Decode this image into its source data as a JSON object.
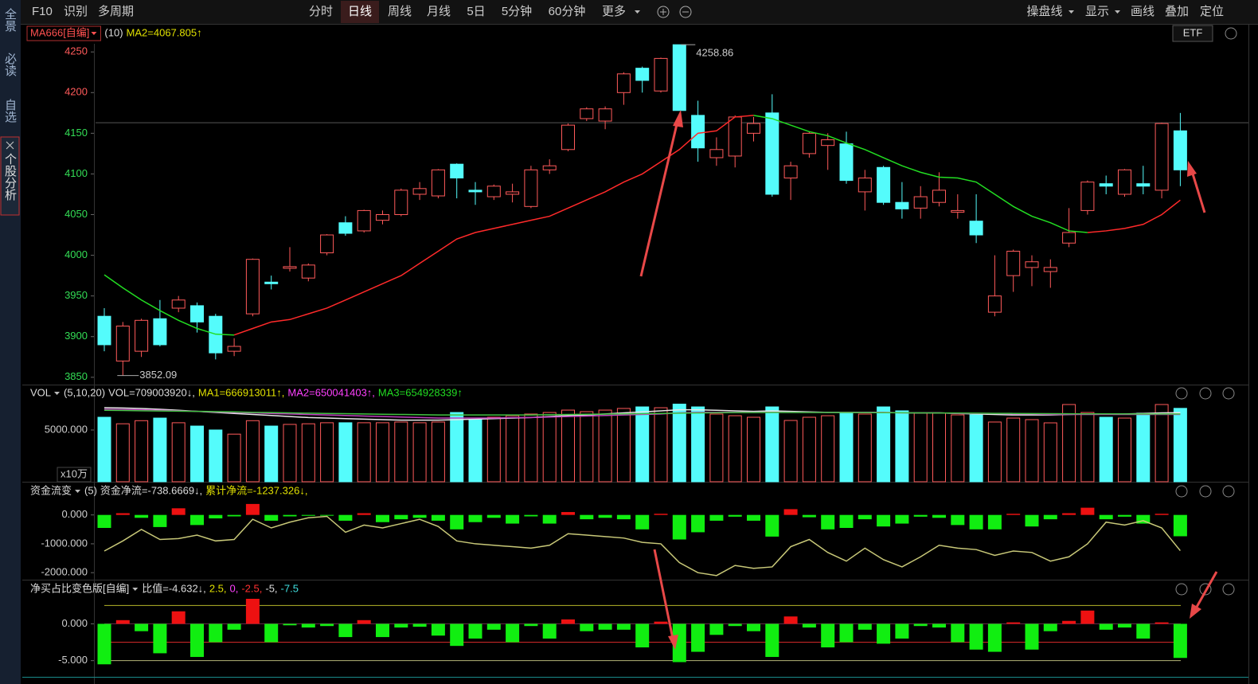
{
  "toolbar": {
    "left": [
      "F10",
      "识别",
      "多周期"
    ],
    "periods": [
      "分时",
      "日线",
      "周线",
      "月线",
      "5日",
      "5分钟",
      "60分钟",
      "更多"
    ],
    "right": [
      "操盘线",
      "显示",
      "画线",
      "叠加",
      "定位"
    ]
  },
  "sidebar": [
    "全景",
    "必读",
    "自选",
    "个股分析"
  ],
  "chart_data": [
    {
      "type": "candlestick",
      "indicator": "MA666[自编]",
      "param": "(10)",
      "legend": "MA2=4067.805↑",
      "button": "ETF",
      "open": [
        3925,
        3870,
        3882,
        3922,
        3935,
        3938,
        3925,
        3882,
        3928,
        3967,
        3984,
        3972,
        4003,
        4040,
        4030,
        4043,
        4050,
        4075,
        4073,
        4112,
        4080,
        4072,
        4075,
        4060,
        4105,
        4130,
        4168,
        4165,
        4200,
        4230,
        4202,
        4258.86,
        4172,
        4120,
        4122,
        4150,
        4175,
        4095,
        4125,
        4135,
        4137,
        4078,
        4108,
        4065,
        4058,
        4065,
        4053,
        4042,
        3930,
        3975,
        3985,
        3980,
        4015,
        4055,
        4088,
        4075,
        4088,
        4080,
        4153
      ],
      "high": [
        3935,
        3918,
        3922,
        3945,
        3950,
        3942,
        3928,
        3898,
        3996,
        3975,
        4010,
        3990,
        4026,
        4048,
        4056,
        4055,
        4082,
        4090,
        4106,
        4113,
        4090,
        4087,
        4088,
        4110,
        4118,
        4162,
        4182,
        4183,
        4225,
        4232,
        4243,
        4258.86,
        4190,
        4145,
        4172,
        4170,
        4198,
        4115,
        4152,
        4150,
        4152,
        4105,
        4110,
        4090,
        4085,
        4102,
        4075,
        4075,
        4000,
        4007,
        4000,
        3995,
        4058,
        4092,
        4098,
        4106,
        4110,
        4163,
        4175
      ],
      "low": [
        3882,
        3852.09,
        3875,
        3888,
        3930,
        3905,
        3872,
        3876,
        3925,
        3958,
        3980,
        3968,
        4000,
        4024,
        4028,
        4038,
        4048,
        4068,
        4070,
        4070,
        4062,
        4068,
        4065,
        4058,
        4100,
        4128,
        4165,
        4155,
        4185,
        4200,
        4200,
        4178,
        4115,
        4110,
        4108,
        4140,
        4072,
        4068,
        4120,
        4105,
        4088,
        4055,
        4062,
        4045,
        4045,
        4060,
        4045,
        4015,
        3925,
        3955,
        3962,
        3960,
        4010,
        4050,
        4075,
        4072,
        4075,
        4070,
        4085
      ],
      "close": [
        3890,
        3913,
        3920,
        3890,
        3945,
        3918,
        3880,
        3888,
        3995,
        3965,
        3986,
        3988,
        4025,
        4027,
        4055,
        4050,
        4080,
        4082,
        4105,
        4095,
        4078,
        4085,
        4078,
        4105,
        4110,
        4160,
        4180,
        4180,
        4223,
        4215,
        4242,
        4178,
        4132,
        4130,
        4170,
        4162,
        4075,
        4110,
        4150,
        4142,
        4092,
        4095,
        4065,
        4057,
        4072,
        4080,
        4055,
        4025,
        3950,
        4005,
        3992,
        3985,
        4028,
        4090,
        4085,
        4105,
        4085,
        4162,
        4105
      ],
      "ma": [
        3976,
        3960,
        3945,
        3932,
        3920,
        3910,
        3903,
        3902,
        3910,
        3918,
        3921,
        3928,
        3935,
        3945,
        3955,
        3965,
        3975,
        3990,
        4005,
        4020,
        4028,
        4033,
        4038,
        4043,
        4048,
        4058,
        4068,
        4078,
        4090,
        4100,
        4115,
        4130,
        4150,
        4153,
        4170,
        4172,
        4168,
        4160,
        4152,
        4147,
        4138,
        4130,
        4120,
        4110,
        4102,
        4096,
        4095,
        4090,
        4075,
        4060,
        4048,
        4040,
        4030,
        4028,
        4030,
        4033,
        4038,
        4050,
        4067.805
      ],
      "prev_close": 4163,
      "ylim": [
        3841,
        4260
      ],
      "yticks": [
        3850,
        3900,
        3950,
        4000,
        4050,
        4100,
        4150,
        4200,
        4250
      ],
      "up_color": "#ff5a5a",
      "down_color": "#54fcfc",
      "ma_up_color": "#ff2a2a",
      "ma_down_color": "#22dd22",
      "tick_up_color": "#ff5a5a",
      "tick_down_color": "#33dd55"
    },
    {
      "type": "volume",
      "title": "VOL",
      "param": "(5,10,20)",
      "legend": [
        "VOL=709003920↓,",
        "MA1=666913011↑,",
        "MA2=650041403↑,",
        "MA3=654928339↑"
      ],
      "legend_colors": [
        "#dddddd",
        "#e0e000",
        "#ff40ff",
        "#22dd22"
      ],
      "values": [
        6230,
        5600,
        5900,
        6150,
        5700,
        5380,
        5000,
        4600,
        5900,
        5380,
        5540,
        5600,
        5700,
        5700,
        5700,
        5700,
        5770,
        5700,
        5770,
        6690,
        6000,
        6230,
        6380,
        6540,
        6690,
        6920,
        6770,
        6920,
        7080,
        7230,
        7150,
        7500,
        7230,
        6540,
        6380,
        6230,
        7230,
        5920,
        6230,
        6380,
        6690,
        6540,
        7230,
        6850,
        6620,
        6620,
        6460,
        6460,
        5770,
        6150,
        6000,
        5690,
        7460,
        6690,
        6230,
        6150,
        6620,
        7460,
        7090.0392
      ],
      "lines": [
        {
          "color": "#e8e8e8",
          "values": [
            7150,
            7120,
            7080,
            7000,
            6900,
            6800,
            6700,
            6600,
            6500,
            6400,
            6300,
            6200,
            6150,
            6100,
            6050,
            6000,
            5950,
            5950,
            5950,
            6000,
            6050,
            6100,
            6150,
            6200,
            6300,
            6400,
            6450,
            6550,
            6650,
            6750,
            6850,
            6950,
            6950,
            6900,
            6850,
            6800,
            6850,
            6800,
            6750,
            6700,
            6700,
            6700,
            6700,
            6650,
            6650,
            6650,
            6600,
            6550,
            6500,
            6450,
            6450,
            6450,
            6500,
            6550,
            6550,
            6550,
            6600,
            6650,
            6669.13011
          ]
        },
        {
          "color": "#c040c0",
          "values": [
            7000,
            6980,
            6950,
            6900,
            6850,
            6800,
            6750,
            6700,
            6650,
            6600,
            6550,
            6500,
            6450,
            6400,
            6350,
            6300,
            6250,
            6200,
            6150,
            6150,
            6150,
            6150,
            6200,
            6200,
            6250,
            6300,
            6350,
            6400,
            6450,
            6500,
            6550,
            6650,
            6700,
            6700,
            6700,
            6700,
            6700,
            6700,
            6700,
            6700,
            6700,
            6700,
            6700,
            6650,
            6650,
            6650,
            6600,
            6600,
            6600,
            6550,
            6550,
            6500,
            6500,
            6500,
            6500,
            6500,
            6500,
            6500,
            6500.41403
          ]
        },
        {
          "color": "#40c040",
          "values": [
            6900,
            6880,
            6860,
            6840,
            6820,
            6800,
            6780,
            6750,
            6700,
            6680,
            6650,
            6620,
            6600,
            6580,
            6550,
            6520,
            6500,
            6480,
            6450,
            6450,
            6450,
            6450,
            6450,
            6450,
            6480,
            6500,
            6520,
            6540,
            6560,
            6580,
            6600,
            6620,
            6640,
            6660,
            6680,
            6680,
            6690,
            6690,
            6690,
            6690,
            6690,
            6680,
            6670,
            6660,
            6650,
            6640,
            6630,
            6620,
            6610,
            6600,
            6590,
            6580,
            6570,
            6560,
            6560,
            6550,
            6550,
            6550,
            6549.28339
          ]
        }
      ],
      "unit": "x10万",
      "ylim": [
        0,
        7538
      ],
      "yticks": [
        {
          "value": 5000,
          "label": "5000.000"
        }
      ],
      "up_color": "#ff5a5a",
      "down_color": "#54fcfc"
    },
    {
      "type": "bar",
      "title": "资金流变",
      "param": "(5)",
      "legend": [
        "资金净流=-738.6669↓,",
        "累计净流=-1237.326↓,"
      ],
      "legend_colors": [
        "#dddddd",
        "#e0e000"
      ],
      "values": [
        -450,
        60,
        -100,
        -420,
        230,
        -350,
        -120,
        -50,
        380,
        -200,
        -50,
        -30,
        -20,
        -200,
        60,
        -250,
        -150,
        -100,
        -200,
        -500,
        -250,
        -100,
        -300,
        -50,
        -300,
        100,
        -150,
        -100,
        -150,
        -500,
        40,
        -850,
        -600,
        -200,
        -60,
        -200,
        -750,
        200,
        -80,
        -500,
        -450,
        -150,
        -400,
        -300,
        -60,
        -100,
        -350,
        -500,
        -500,
        40,
        -400,
        -150,
        60,
        250,
        -150,
        -60,
        -300,
        40,
        -738.6669
      ],
      "line": [
        -1250,
        -900,
        -500,
        -850,
        -820,
        -700,
        -900,
        -850,
        -150,
        -450,
        -250,
        -100,
        -50,
        -600,
        -350,
        -450,
        -300,
        -150,
        -400,
        -900,
        -1000,
        -1050,
        -1100,
        -1150,
        -1050,
        -650,
        -700,
        -750,
        -800,
        -950,
        -1000,
        -1650,
        -2000,
        -2100,
        -1750,
        -1850,
        -1800,
        -1100,
        -850,
        -1300,
        -1600,
        -1150,
        -1550,
        -1800,
        -1450,
        -1050,
        -1150,
        -1200,
        -1400,
        -1250,
        -1300,
        -1600,
        -1450,
        -1000,
        -250,
        -350,
        -200,
        -450,
        -1237.326
      ],
      "line_color": "#c8c878",
      "ylim": [
        -2243,
        460
      ],
      "yticks": [
        {
          "value": 0,
          "label": "0.000"
        },
        {
          "value": -1000,
          "label": "-1000.000"
        },
        {
          "value": -2000,
          "label": "-2000.000"
        }
      ],
      "up_color": "#ee1111",
      "down_color": "#11ee11"
    },
    {
      "type": "bar",
      "title": "净买占比变色版[自编]",
      "legend": [
        "比值=-4.632↓,",
        "2.5,",
        "0,",
        "-2.5,",
        "-5,",
        "-7.5"
      ],
      "legend_colors": [
        "#dddddd",
        "#e0e000",
        "#ff40ff",
        "#ff3030",
        "#dddddd",
        "#40e0e0"
      ],
      "values": [
        -5.5,
        0.5,
        -1.0,
        -4.0,
        1.7,
        -4.5,
        -2.5,
        -0.8,
        3.4,
        -2.5,
        -0.2,
        -0.5,
        -0.3,
        -1.8,
        0.5,
        -1.8,
        -0.5,
        -0.4,
        -1.6,
        -3.0,
        -2.0,
        -0.8,
        -2.5,
        -0.3,
        -2.0,
        0.6,
        -1.0,
        -0.8,
        -0.8,
        -3.2,
        0.3,
        -5.2,
        -3.8,
        -1.5,
        -0.3,
        -1.0,
        -4.5,
        1.0,
        -0.5,
        -3.2,
        -2.5,
        -0.8,
        -2.7,
        -2.0,
        -0.3,
        -0.5,
        -2.5,
        -3.5,
        -3.8,
        0.2,
        -3.5,
        -1.0,
        0.4,
        1.8,
        -0.8,
        -0.5,
        -2.0,
        0.2,
        -4.632
      ],
      "levels": [
        2.5,
        0,
        -2.5,
        -5
      ],
      "level_colors": [
        "#b4b428",
        "#6a2a4a",
        "#d02828",
        "#b4b478"
      ],
      "ylim": [
        -7.2,
        3.4
      ],
      "yticks": [
        {
          "value": 0,
          "label": "0.000"
        },
        {
          "value": -5,
          "label": "-5.000"
        }
      ],
      "up_color": "#ee1111",
      "down_color": "#11ee11"
    }
  ]
}
